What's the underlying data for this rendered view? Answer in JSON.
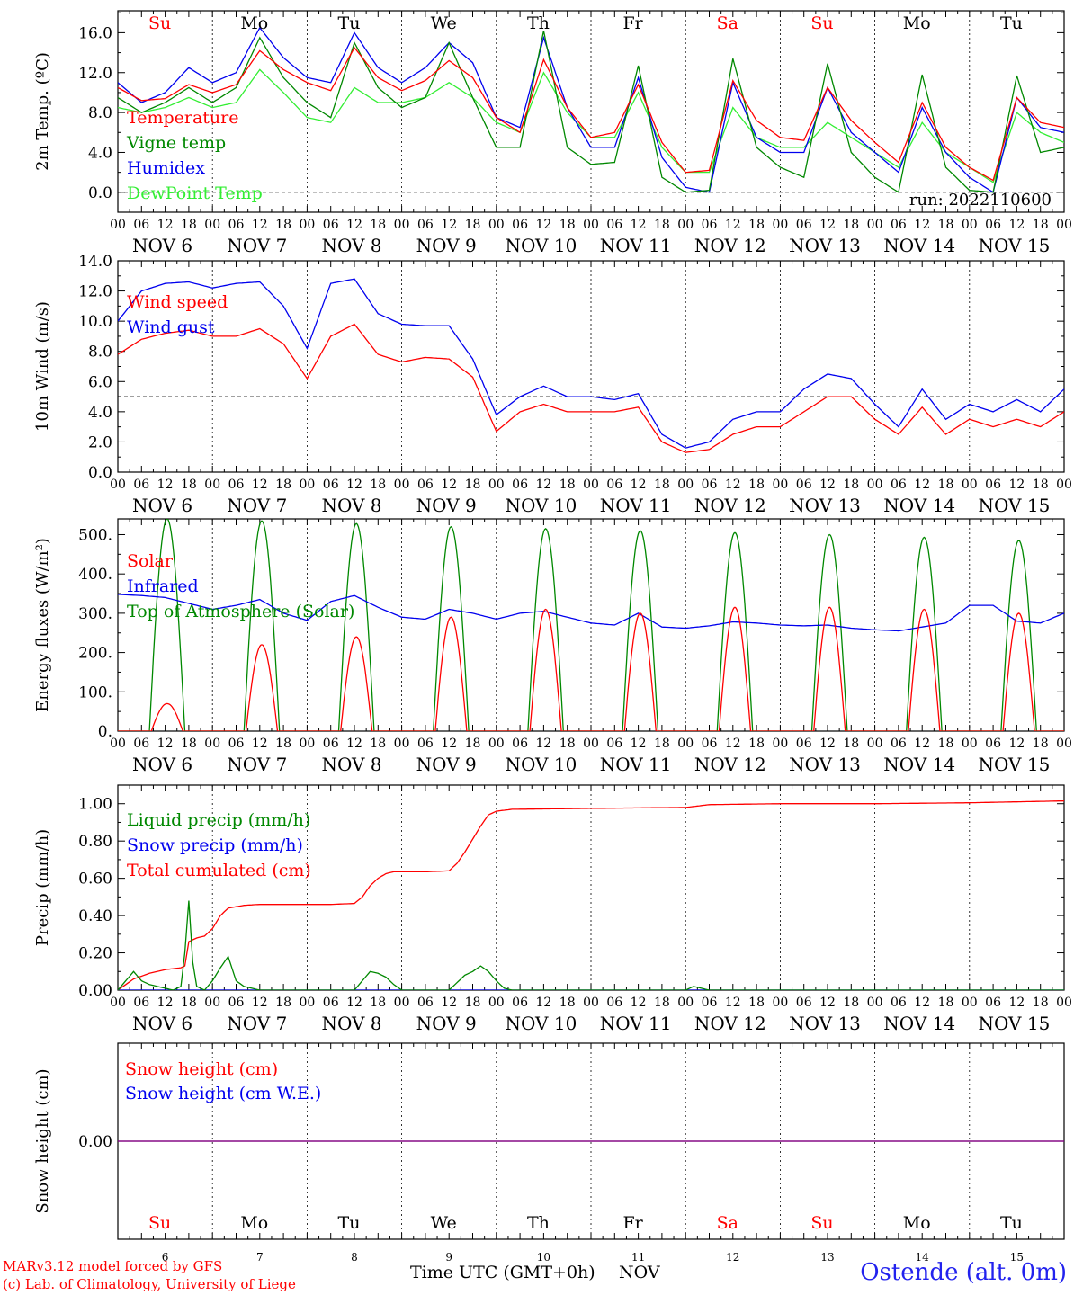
{
  "days": [
    {
      "abbr": "Su",
      "label": "NOV  6",
      "num": "6",
      "weekend": true
    },
    {
      "abbr": "Mo",
      "label": "NOV  7",
      "num": "7",
      "weekend": false
    },
    {
      "abbr": "Tu",
      "label": "NOV  8",
      "num": "8",
      "weekend": false
    },
    {
      "abbr": "We",
      "label": "NOV  9",
      "num": "9",
      "weekend": false
    },
    {
      "abbr": "Th",
      "label": "NOV 10",
      "num": "10",
      "weekend": false
    },
    {
      "abbr": "Fr",
      "label": "NOV 11",
      "num": "11",
      "weekend": false
    },
    {
      "abbr": "Sa",
      "label": "NOV 12",
      "num": "12",
      "weekend": true
    },
    {
      "abbr": "Su",
      "label": "NOV 13",
      "num": "13",
      "weekend": true
    },
    {
      "abbr": "Mo",
      "label": "NOV 14",
      "num": "14",
      "weekend": false
    },
    {
      "abbr": "Tu",
      "label": "NOV 15",
      "num": "15",
      "weekend": false
    }
  ],
  "hour_ticks": [
    "00",
    "06",
    "12",
    "18"
  ],
  "final_tick": "00",
  "colors": {
    "red": "#ff0000",
    "green": "#008800",
    "blue": "#0000ee",
    "lightgreen": "#33ee33",
    "purple": "#800080"
  },
  "footer": {
    "credit_line1": "MARv3.12 model forced by GFS",
    "credit_line2": "(c) Lab. of Climatology, University of Liege",
    "x_title": "Time UTC (GMT+0h)",
    "x_unit": "NOV",
    "station": "Ostende (alt. 0m)"
  },
  "chart_data": [
    {
      "type": "line",
      "ylabel": "2m Temp. (ºC)",
      "ylim": [
        -2.0,
        18.2
      ],
      "yticks": [
        0.0,
        4.0,
        8.0,
        12.0,
        16.0
      ],
      "ytick_labels": [
        "0.0",
        "4.0",
        "8.0",
        "12.0",
        "16.0"
      ],
      "ref_line": 0.0,
      "annotation": "run: 2022110600",
      "x_unit": "hours since NOV 6 00 UTC",
      "series": [
        {
          "name": "Temperature",
          "color": "red",
          "x": [
            0,
            6,
            12,
            18,
            24,
            30,
            36,
            42,
            48,
            54,
            60,
            66,
            72,
            78,
            84,
            90,
            96,
            102,
            108,
            114,
            120,
            126,
            132,
            138,
            144,
            150,
            156,
            162,
            168,
            174,
            180,
            186,
            192,
            198,
            204,
            210,
            216,
            222,
            228,
            234,
            240
          ],
          "y": [
            10.5,
            9.2,
            9.4,
            10.8,
            10.0,
            10.8,
            14.2,
            12.3,
            11.0,
            10.2,
            14.5,
            11.5,
            10.2,
            11.2,
            13.2,
            11.5,
            7.5,
            6.0,
            13.3,
            8.5,
            5.5,
            6.0,
            10.8,
            5.0,
            2.0,
            2.2,
            11.2,
            7.2,
            5.5,
            5.2,
            10.5,
            7.2,
            5.0,
            3.0,
            9.0,
            4.5,
            2.5,
            1.2,
            9.5,
            7.0,
            6.5
          ]
        },
        {
          "name": "Vigne temp",
          "color": "green",
          "x": [
            0,
            6,
            12,
            18,
            24,
            30,
            36,
            42,
            48,
            54,
            60,
            66,
            72,
            78,
            84,
            90,
            96,
            102,
            108,
            114,
            120,
            126,
            132,
            138,
            144,
            150,
            156,
            162,
            168,
            174,
            180,
            186,
            192,
            198,
            204,
            210,
            216,
            222,
            228,
            234,
            240
          ],
          "y": [
            9.5,
            8.0,
            9.0,
            10.5,
            9.0,
            10.5,
            15.5,
            11.5,
            9.0,
            7.5,
            15.0,
            10.5,
            8.5,
            9.5,
            15.0,
            9.5,
            4.5,
            4.5,
            16.2,
            4.5,
            2.8,
            3.0,
            12.7,
            1.5,
            0.0,
            0.2,
            13.4,
            4.5,
            2.5,
            1.5,
            12.9,
            4.0,
            1.5,
            0.0,
            11.8,
            2.5,
            0.2,
            0.0,
            11.7,
            4.0,
            4.5
          ]
        },
        {
          "name": "Humidex",
          "color": "blue",
          "x": [
            0,
            6,
            12,
            18,
            24,
            30,
            36,
            42,
            48,
            54,
            60,
            66,
            72,
            78,
            84,
            90,
            96,
            102,
            108,
            114,
            120,
            126,
            132,
            138,
            144,
            150,
            156,
            162,
            168,
            174,
            180,
            186,
            192,
            198,
            204,
            210,
            216,
            222,
            228,
            234,
            240
          ],
          "y": [
            11.0,
            9.0,
            10.0,
            12.5,
            11.0,
            12.0,
            16.5,
            13.5,
            11.5,
            11.0,
            16.0,
            12.5,
            11.0,
            12.5,
            15.0,
            13.0,
            7.5,
            6.5,
            15.5,
            8.5,
            4.5,
            4.5,
            11.5,
            3.5,
            0.5,
            0.0,
            11.0,
            5.5,
            4.0,
            4.0,
            10.5,
            6.0,
            4.0,
            2.0,
            8.5,
            4.0,
            1.5,
            0.0,
            9.5,
            6.5,
            6.0
          ]
        },
        {
          "name": "DewPoint Temp",
          "color": "lightgreen",
          "x": [
            0,
            6,
            12,
            18,
            24,
            30,
            36,
            42,
            48,
            54,
            60,
            66,
            72,
            78,
            84,
            90,
            96,
            102,
            108,
            114,
            120,
            126,
            132,
            138,
            144,
            150,
            156,
            162,
            168,
            174,
            180,
            186,
            192,
            198,
            204,
            210,
            216,
            222,
            228,
            234,
            240
          ],
          "y": [
            8.5,
            8.0,
            8.5,
            9.5,
            8.5,
            9.0,
            12.3,
            10.0,
            7.5,
            7.0,
            10.5,
            9.0,
            9.0,
            9.5,
            11.0,
            9.5,
            7.0,
            6.0,
            12.0,
            8.0,
            5.5,
            5.5,
            10.0,
            4.5,
            2.0,
            2.0,
            8.5,
            5.5,
            4.5,
            4.5,
            7.0,
            5.5,
            4.0,
            2.5,
            7.0,
            4.0,
            2.5,
            1.0,
            8.0,
            6.0,
            5.0
          ]
        }
      ]
    },
    {
      "type": "line",
      "ylabel": "10m Wind (m/s)",
      "ylim": [
        0.0,
        14.0
      ],
      "yticks": [
        0.0,
        2.0,
        4.0,
        6.0,
        8.0,
        10.0,
        12.0,
        14.0
      ],
      "ytick_labels": [
        "0.0",
        "2.0",
        "4.0",
        "6.0",
        "8.0",
        "10.0",
        "12.0",
        "14.0"
      ],
      "ref_line": 5.0,
      "x_unit": "hours since NOV 6 00 UTC",
      "series": [
        {
          "name": "Wind speed",
          "color": "red",
          "x": [
            0,
            6,
            12,
            18,
            24,
            30,
            36,
            42,
            48,
            54,
            60,
            66,
            72,
            78,
            84,
            90,
            96,
            102,
            108,
            114,
            120,
            126,
            132,
            138,
            144,
            150,
            156,
            162,
            168,
            174,
            180,
            186,
            192,
            198,
            204,
            210,
            216,
            222,
            228,
            234,
            240
          ],
          "y": [
            7.8,
            8.8,
            9.2,
            9.4,
            9.0,
            9.0,
            9.5,
            8.5,
            6.2,
            9.0,
            9.8,
            7.8,
            7.3,
            7.6,
            7.5,
            6.3,
            2.7,
            4.0,
            4.5,
            4.0,
            4.0,
            4.0,
            4.3,
            2.0,
            1.3,
            1.5,
            2.5,
            3.0,
            3.0,
            4.0,
            5.0,
            5.0,
            3.5,
            2.5,
            4.3,
            2.5,
            3.5,
            3.0,
            3.5,
            3.0,
            4.0
          ]
        },
        {
          "name": "Wind gust",
          "color": "blue",
          "x": [
            0,
            6,
            12,
            18,
            24,
            30,
            36,
            42,
            48,
            54,
            60,
            66,
            72,
            78,
            84,
            90,
            96,
            102,
            108,
            114,
            120,
            126,
            132,
            138,
            144,
            150,
            156,
            162,
            168,
            174,
            180,
            186,
            192,
            198,
            204,
            210,
            216,
            222,
            228,
            234,
            240
          ],
          "y": [
            10.0,
            12.0,
            12.5,
            12.6,
            12.2,
            12.5,
            12.6,
            11.0,
            8.2,
            12.5,
            12.8,
            10.5,
            9.8,
            9.7,
            9.7,
            7.5,
            3.8,
            5.0,
            5.7,
            5.0,
            5.0,
            4.8,
            5.2,
            2.5,
            1.6,
            2.0,
            3.5,
            4.0,
            4.0,
            5.5,
            6.5,
            6.2,
            4.5,
            3.0,
            5.5,
            3.5,
            4.5,
            4.0,
            4.8,
            4.0,
            5.5
          ]
        }
      ]
    },
    {
      "type": "line",
      "ylabel": "Energy fluxes (W/m²)",
      "ylim": [
        0,
        540
      ],
      "yticks": [
        0,
        100,
        200,
        300,
        400,
        500
      ],
      "ytick_labels": [
        "0.",
        "100.",
        "200.",
        "300.",
        "400.",
        "500."
      ],
      "x_unit": "hours since NOV 6 00 UTC",
      "series": [
        {
          "name": "Solar",
          "color": "red",
          "daily_peak_hour": 12.5,
          "daily_halfwidth_h": 4.0,
          "daily_peaks": [
            70,
            220,
            240,
            290,
            310,
            300,
            315,
            315,
            310,
            300
          ]
        },
        {
          "name": "Infrared",
          "color": "blue",
          "x": [
            0,
            6,
            12,
            18,
            24,
            30,
            36,
            42,
            48,
            54,
            60,
            66,
            72,
            78,
            84,
            90,
            96,
            102,
            108,
            114,
            120,
            126,
            132,
            138,
            144,
            150,
            156,
            162,
            168,
            174,
            180,
            186,
            192,
            198,
            204,
            210,
            216,
            222,
            228,
            234,
            240
          ],
          "y": [
            348,
            345,
            340,
            325,
            310,
            320,
            335,
            300,
            282,
            330,
            345,
            315,
            290,
            285,
            310,
            300,
            285,
            300,
            305,
            290,
            275,
            270,
            300,
            265,
            262,
            268,
            278,
            275,
            270,
            268,
            270,
            262,
            258,
            255,
            265,
            275,
            320,
            320,
            280,
            275,
            300
          ]
        },
        {
          "name": "Top of Atmosphere (Solar)",
          "color": "green",
          "daily_peak_hour": 12.5,
          "daily_halfwidth_h": 4.5,
          "daily_peaks": [
            540,
            535,
            528,
            520,
            515,
            510,
            505,
            500,
            493,
            485
          ]
        }
      ]
    },
    {
      "type": "line",
      "ylabel": "Precip (mm/h)",
      "ylim": [
        0.0,
        1.1
      ],
      "yticks": [
        0.0,
        0.2,
        0.4,
        0.6,
        0.8,
        1.0
      ],
      "ytick_labels": [
        "0.00",
        "0.20",
        "0.40",
        "0.60",
        "0.80",
        "1.00"
      ],
      "x_unit": "hours since NOV 6 00 UTC",
      "series": [
        {
          "name": "Liquid precip (mm/h)",
          "color": "green",
          "x": [
            0,
            2,
            4,
            6,
            8,
            10,
            12,
            14,
            16,
            17,
            18,
            19,
            20,
            22,
            24,
            26,
            28,
            30,
            32,
            34,
            36,
            60,
            62,
            64,
            66,
            68,
            70,
            72,
            84,
            86,
            88,
            90,
            92,
            94,
            96,
            98,
            100,
            144,
            146,
            148,
            150,
            240
          ],
          "y": [
            0.0,
            0.05,
            0.1,
            0.05,
            0.03,
            0.02,
            0.01,
            0.0,
            0.02,
            0.2,
            0.48,
            0.15,
            0.02,
            0.0,
            0.05,
            0.12,
            0.18,
            0.05,
            0.02,
            0.01,
            0.0,
            0.0,
            0.05,
            0.1,
            0.09,
            0.07,
            0.03,
            0.0,
            0.0,
            0.04,
            0.08,
            0.1,
            0.13,
            0.1,
            0.05,
            0.01,
            0.0,
            0.0,
            0.02,
            0.01,
            0.0,
            0.0
          ]
        },
        {
          "name": "Snow precip (mm/h)",
          "color": "blue",
          "x": [
            0,
            240
          ],
          "y": [
            0.0,
            0.0
          ]
        },
        {
          "name": "Total cumulated (cm)",
          "color": "red",
          "x": [
            0,
            4,
            8,
            12,
            16,
            17,
            18,
            20,
            22,
            24,
            26,
            28,
            32,
            36,
            42,
            48,
            54,
            60,
            62,
            64,
            66,
            68,
            70,
            72,
            78,
            84,
            86,
            88,
            90,
            92,
            94,
            96,
            98,
            100,
            120,
            144,
            150,
            168,
            192,
            216,
            240
          ],
          "y": [
            0.0,
            0.06,
            0.09,
            0.11,
            0.12,
            0.13,
            0.26,
            0.28,
            0.29,
            0.33,
            0.4,
            0.44,
            0.455,
            0.46,
            0.46,
            0.46,
            0.46,
            0.465,
            0.5,
            0.56,
            0.6,
            0.625,
            0.635,
            0.635,
            0.635,
            0.64,
            0.68,
            0.74,
            0.81,
            0.88,
            0.94,
            0.96,
            0.965,
            0.97,
            0.975,
            0.98,
            0.995,
            1.0,
            1.0,
            1.005,
            1.015
          ]
        }
      ]
    },
    {
      "type": "line",
      "ylabel": "Snow height (cm)",
      "ylim": [
        -1.0,
        1.0
      ],
      "yticks": [
        0.0
      ],
      "ytick_labels": [
        "0.00"
      ],
      "x_unit": "hours since NOV 6 00 UTC",
      "series": [
        {
          "name": "Snow height (cm)",
          "color": "red",
          "x": [
            0,
            240
          ],
          "y": [
            0.0,
            0.0
          ]
        },
        {
          "name": "Snow height (cm W.E.)",
          "color": "blue",
          "x": [
            0,
            240
          ],
          "y": [
            0.0,
            0.0
          ]
        }
      ]
    }
  ]
}
